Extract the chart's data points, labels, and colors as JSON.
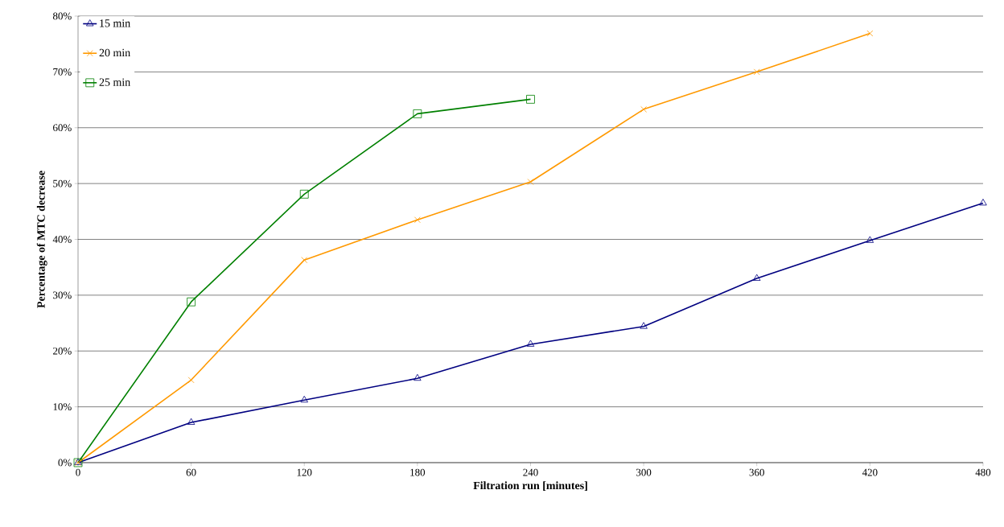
{
  "chart_data": {
    "type": "line",
    "xlabel": "Filtration run [minutes]",
    "ylabel": "Percentage of MTC decrease",
    "xlim": [
      0,
      480
    ],
    "xticks": [
      0,
      60,
      120,
      180,
      240,
      300,
      360,
      420,
      480
    ],
    "ylim": [
      0,
      80
    ],
    "yticks": [
      {
        "value": 0,
        "label": "0%"
      },
      {
        "value": 10,
        "label": "10%"
      },
      {
        "value": 20,
        "label": "20%"
      },
      {
        "value": 30,
        "label": "30%"
      },
      {
        "value": 40,
        "label": "40%"
      },
      {
        "value": 50,
        "label": "50%"
      },
      {
        "value": 60,
        "label": "60%"
      },
      {
        "value": 70,
        "label": "70%"
      },
      {
        "value": 80,
        "label": "80%"
      }
    ],
    "grid": "y",
    "legend": "top left",
    "line_style": "solid",
    "series": [
      {
        "name": "15 min",
        "color": "#000080",
        "marker": "triangle",
        "x": [
          0,
          60,
          120,
          180,
          240,
          300,
          360,
          420,
          480
        ],
        "values": [
          0,
          7.2,
          11.2,
          15.1,
          21.2,
          24.4,
          33.0,
          39.8,
          46.5
        ]
      },
      {
        "name": "20 min",
        "color": "#ff9900",
        "marker": "cross",
        "x": [
          0,
          60,
          120,
          180,
          240,
          300,
          360,
          420
        ],
        "values": [
          0,
          14.8,
          36.3,
          43.5,
          50.3,
          63.3,
          70.0,
          76.9
        ]
      },
      {
        "name": "25 min",
        "color": "#008000",
        "marker": "square",
        "x": [
          0,
          60,
          120,
          180,
          240
        ],
        "values": [
          0,
          28.8,
          48.1,
          62.5,
          65.1
        ]
      }
    ]
  }
}
